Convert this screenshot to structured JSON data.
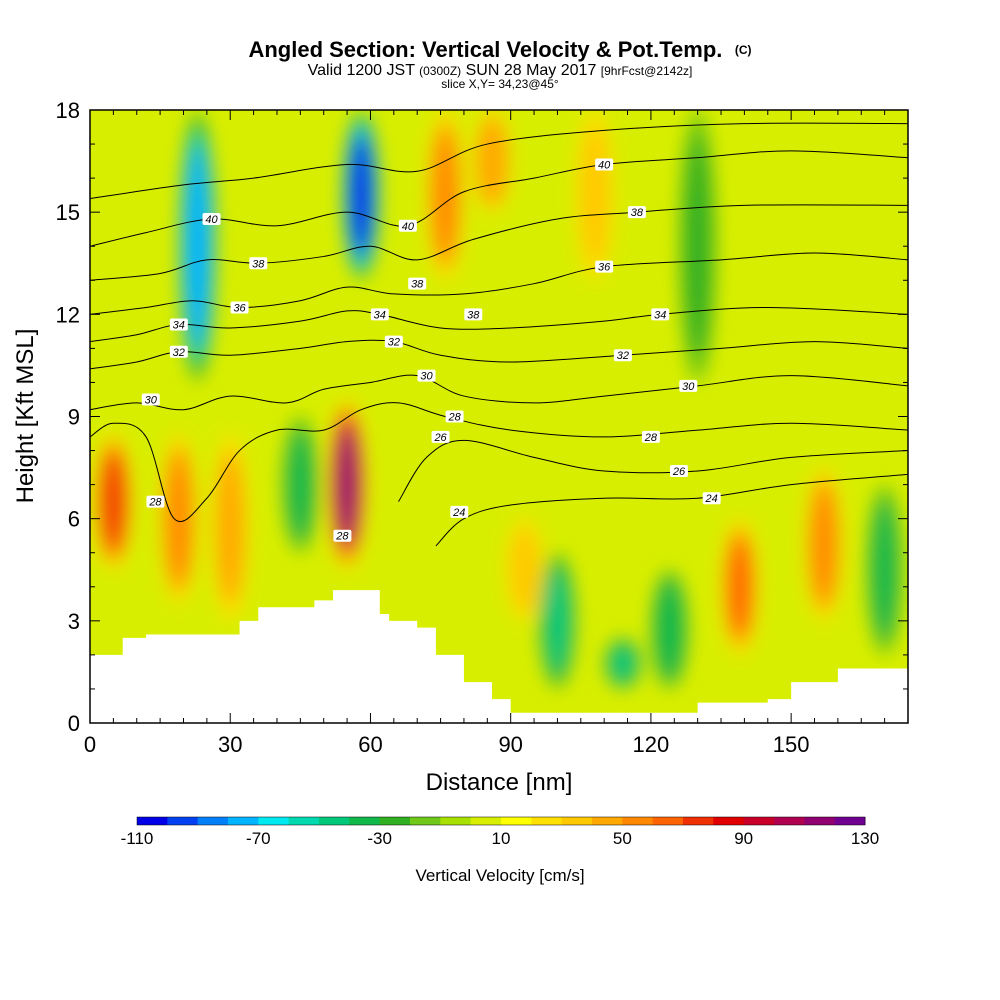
{
  "header": {
    "title_main": "Angled Section: Vertical Velocity & Pot.Temp.",
    "title_unit": "(C)",
    "line2_a": "Valid 1200 JST",
    "line2_b": "(0300Z)",
    "line2_c": "SUN 28 May 2017",
    "line2_d": "[9hrFcst@2142z]",
    "line3": "slice X,Y= 34,23@45°"
  },
  "chart_data": {
    "type": "heatmap",
    "title": "Angled Section: Vertical Velocity & Pot.Temp. (C)",
    "xlabel": "Distance [nm]",
    "ylabel": "Height [Kft MSL]",
    "xlim": [
      0,
      175
    ],
    "ylim": [
      0,
      18
    ],
    "x_ticks": [
      0,
      30,
      60,
      90,
      120,
      150
    ],
    "y_ticks": [
      0,
      3,
      6,
      9,
      12,
      15,
      18
    ],
    "x_tick_labels": [
      "0",
      "30",
      "60",
      "90",
      "120",
      "150"
    ],
    "y_tick_labels": [
      "0",
      "3",
      "6",
      "9",
      "12",
      "15",
      "18"
    ],
    "colorbar": {
      "title": "Vertical Velocity [cm/s]",
      "min": -110,
      "max": 130,
      "step": 10,
      "tick_labels": [
        "-110",
        "-70",
        "-30",
        "10",
        "50",
        "90",
        "130"
      ],
      "colors": [
        "#0000e6",
        "#0040f0",
        "#0080f8",
        "#00b4ff",
        "#00e8f0",
        "#00d8b0",
        "#00c87a",
        "#10b84a",
        "#30b020",
        "#70c818",
        "#a8e000",
        "#d8ee00",
        "#ffff00",
        "#ffe000",
        "#ffc800",
        "#ffa800",
        "#ff8800",
        "#ff6400",
        "#f03000",
        "#e00000",
        "#c80028",
        "#b00050",
        "#900070",
        "#700090"
      ]
    },
    "updraft_columns": [
      {
        "x": 5,
        "y": [
          4.5,
          8.5
        ],
        "w": 60
      },
      {
        "x": 19,
        "y": [
          3.5,
          8.5
        ],
        "w": 40
      },
      {
        "x": 30,
        "y": [
          3.0,
          8.5
        ],
        "w": 30
      },
      {
        "x": 55,
        "y": [
          4.5,
          9.5
        ],
        "w": 100
      },
      {
        "x": 76,
        "y": [
          13.0,
          18.0
        ],
        "w": 40
      },
      {
        "x": 86,
        "y": [
          15.0,
          18.0
        ],
        "w": 35
      },
      {
        "x": 108,
        "y": [
          13.0,
          18.0
        ],
        "w": 20
      },
      {
        "x": 93,
        "y": [
          3.0,
          6.0
        ],
        "w": 20
      },
      {
        "x": 139,
        "y": [
          2.0,
          6.0
        ],
        "w": 50
      },
      {
        "x": 157,
        "y": [
          3.0,
          7.5
        ],
        "w": 40
      }
    ],
    "downdraft_columns": [
      {
        "x": 23,
        "y": [
          10.0,
          18.0
        ],
        "w": -75
      },
      {
        "x": 58,
        "y": [
          13.0,
          18.0
        ],
        "w": -110
      },
      {
        "x": 45,
        "y": [
          5.0,
          9.0
        ],
        "w": -30
      },
      {
        "x": 100,
        "y": [
          1.0,
          5.0
        ],
        "w": -40
      },
      {
        "x": 114,
        "y": [
          1.0,
          2.5
        ],
        "w": -40
      },
      {
        "x": 124,
        "y": [
          1.0,
          4.5
        ],
        "w": -35
      },
      {
        "x": 170,
        "y": [
          2.0,
          7.0
        ],
        "w": -30
      },
      {
        "x": 130,
        "y": [
          10.0,
          18.0
        ],
        "w": -20
      }
    ],
    "terrain": [
      [
        0,
        2.0
      ],
      [
        5,
        2.0
      ],
      [
        7,
        2.5
      ],
      [
        12,
        2.6
      ],
      [
        29,
        2.6
      ],
      [
        32,
        3.0
      ],
      [
        36,
        3.4
      ],
      [
        48,
        3.6
      ],
      [
        52,
        3.9
      ],
      [
        58,
        3.9
      ],
      [
        62,
        3.2
      ],
      [
        64,
        3.0
      ],
      [
        70,
        2.8
      ],
      [
        74,
        2.0
      ],
      [
        80,
        1.2
      ],
      [
        86,
        0.7
      ],
      [
        90,
        0.3
      ],
      [
        128,
        0.3
      ],
      [
        130,
        0.6
      ],
      [
        145,
        0.7
      ],
      [
        150,
        1.2
      ],
      [
        160,
        1.6
      ],
      [
        175,
        1.6
      ]
    ],
    "contour_labels": [
      {
        "text": "40",
        "x": 26,
        "y": 14.8
      },
      {
        "text": "40",
        "x": 68,
        "y": 14.6
      },
      {
        "text": "40",
        "x": 110,
        "y": 16.4
      },
      {
        "text": "38",
        "x": 36,
        "y": 13.5
      },
      {
        "text": "38",
        "x": 70,
        "y": 12.9
      },
      {
        "text": "38",
        "x": 82,
        "y": 12.0
      },
      {
        "text": "38",
        "x": 117,
        "y": 15.0
      },
      {
        "text": "36",
        "x": 32,
        "y": 12.2
      },
      {
        "text": "36",
        "x": 110,
        "y": 13.4
      },
      {
        "text": "34",
        "x": 19,
        "y": 11.7
      },
      {
        "text": "34",
        "x": 62,
        "y": 12.0
      },
      {
        "text": "34",
        "x": 122,
        "y": 12.0
      },
      {
        "text": "32",
        "x": 19,
        "y": 10.9
      },
      {
        "text": "32",
        "x": 65,
        "y": 11.2
      },
      {
        "text": "32",
        "x": 114,
        "y": 10.8
      },
      {
        "text": "30",
        "x": 13,
        "y": 9.5
      },
      {
        "text": "30",
        "x": 72,
        "y": 10.2
      },
      {
        "text": "30",
        "x": 128,
        "y": 9.9
      },
      {
        "text": "28",
        "x": 78,
        "y": 9.0
      },
      {
        "text": "28",
        "x": 120,
        "y": 8.4
      },
      {
        "text": "28",
        "x": 14,
        "y": 6.5
      },
      {
        "text": "28",
        "x": 54,
        "y": 5.5
      },
      {
        "text": "26",
        "x": 75,
        "y": 8.4
      },
      {
        "text": "26",
        "x": 126,
        "y": 7.4
      },
      {
        "text": "24",
        "x": 79,
        "y": 6.2
      },
      {
        "text": "24",
        "x": 133,
        "y": 6.6
      }
    ],
    "isentropes": [
      {
        "value": 24,
        "points": [
          [
            74,
            5.2
          ],
          [
            80,
            6.0
          ],
          [
            90,
            6.4
          ],
          [
            110,
            6.6
          ],
          [
            130,
            6.6
          ],
          [
            150,
            7.0
          ],
          [
            175,
            7.3
          ]
        ]
      },
      {
        "value": 26,
        "points": [
          [
            66,
            6.5
          ],
          [
            72,
            7.8
          ],
          [
            80,
            8.3
          ],
          [
            95,
            7.8
          ],
          [
            110,
            7.4
          ],
          [
            130,
            7.4
          ],
          [
            150,
            7.8
          ],
          [
            175,
            8.0
          ]
        ]
      },
      {
        "value": 28,
        "points": [
          [
            0,
            8.4
          ],
          [
            5,
            8.8
          ],
          [
            12,
            8.4
          ],
          [
            18,
            6.0
          ],
          [
            25,
            6.6
          ],
          [
            32,
            8.0
          ],
          [
            40,
            8.6
          ],
          [
            50,
            8.6
          ],
          [
            58,
            9.2
          ],
          [
            66,
            9.4
          ],
          [
            76,
            9.0
          ],
          [
            90,
            8.6
          ],
          [
            110,
            8.4
          ],
          [
            130,
            8.6
          ],
          [
            150,
            8.8
          ],
          [
            175,
            8.6
          ]
        ]
      },
      {
        "value": 30,
        "points": [
          [
            0,
            9.2
          ],
          [
            10,
            9.4
          ],
          [
            20,
            9.2
          ],
          [
            30,
            9.6
          ],
          [
            42,
            9.4
          ],
          [
            50,
            9.8
          ],
          [
            60,
            10.0
          ],
          [
            70,
            10.2
          ],
          [
            80,
            9.6
          ],
          [
            95,
            9.4
          ],
          [
            110,
            9.6
          ],
          [
            130,
            9.9
          ],
          [
            150,
            10.2
          ],
          [
            175,
            9.9
          ]
        ]
      },
      {
        "value": 32,
        "points": [
          [
            0,
            10.4
          ],
          [
            10,
            10.6
          ],
          [
            19,
            10.9
          ],
          [
            30,
            10.8
          ],
          [
            45,
            11.0
          ],
          [
            55,
            11.2
          ],
          [
            65,
            11.2
          ],
          [
            75,
            10.8
          ],
          [
            90,
            10.6
          ],
          [
            114,
            10.8
          ],
          [
            135,
            11.0
          ],
          [
            155,
            11.2
          ],
          [
            175,
            11.0
          ]
        ]
      },
      {
        "value": 34,
        "points": [
          [
            0,
            11.2
          ],
          [
            10,
            11.4
          ],
          [
            19,
            11.7
          ],
          [
            30,
            11.6
          ],
          [
            45,
            11.8
          ],
          [
            55,
            12.1
          ],
          [
            62,
            12.0
          ],
          [
            75,
            11.6
          ],
          [
            90,
            11.6
          ],
          [
            110,
            11.8
          ],
          [
            122,
            12.0
          ],
          [
            145,
            12.2
          ],
          [
            175,
            12.0
          ]
        ]
      },
      {
        "value": 36,
        "points": [
          [
            0,
            12.0
          ],
          [
            12,
            12.2
          ],
          [
            22,
            12.4
          ],
          [
            32,
            12.2
          ],
          [
            45,
            12.4
          ],
          [
            55,
            12.8
          ],
          [
            65,
            12.6
          ],
          [
            80,
            12.6
          ],
          [
            95,
            12.9
          ],
          [
            110,
            13.4
          ],
          [
            135,
            13.6
          ],
          [
            155,
            13.8
          ],
          [
            175,
            13.6
          ]
        ]
      },
      {
        "value": 38,
        "points": [
          [
            0,
            13.0
          ],
          [
            15,
            13.2
          ],
          [
            25,
            13.6
          ],
          [
            36,
            13.5
          ],
          [
            50,
            13.7
          ],
          [
            60,
            14.0
          ],
          [
            70,
            13.6
          ],
          [
            82,
            14.2
          ],
          [
            100,
            14.8
          ],
          [
            117,
            15.0
          ],
          [
            140,
            15.2
          ],
          [
            175,
            15.2
          ]
        ]
      },
      {
        "value": 40,
        "points": [
          [
            0,
            14.0
          ],
          [
            12,
            14.4
          ],
          [
            26,
            14.8
          ],
          [
            40,
            14.6
          ],
          [
            55,
            15.0
          ],
          [
            68,
            14.6
          ],
          [
            80,
            15.6
          ],
          [
            95,
            16.0
          ],
          [
            110,
            16.4
          ],
          [
            130,
            16.6
          ],
          [
            150,
            16.8
          ],
          [
            175,
            16.6
          ]
        ]
      },
      {
        "value": 42,
        "points": [
          [
            0,
            15.4
          ],
          [
            20,
            15.8
          ],
          [
            35,
            16.0
          ],
          [
            55,
            16.4
          ],
          [
            70,
            16.2
          ],
          [
            85,
            17.0
          ],
          [
            110,
            17.4
          ],
          [
            140,
            17.6
          ],
          [
            175,
            17.6
          ]
        ]
      }
    ]
  }
}
